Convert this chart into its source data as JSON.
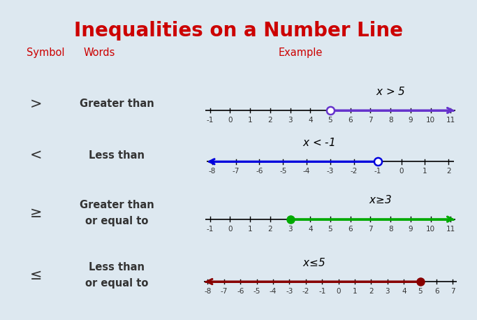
{
  "title": "Inequalities on a Number Line",
  "title_color": "#cc0000",
  "title_fontsize": 20,
  "bg_color": "#ffffff",
  "outer_bg": "#dde8f0",
  "header_color": "#cc0000",
  "rows": [
    {
      "symbol": ">",
      "words": "Greater than",
      "words2": null,
      "equation": "x > 5",
      "ticks": [
        -1,
        0,
        1,
        2,
        3,
        4,
        5,
        6,
        7,
        8,
        9,
        10,
        11
      ],
      "point": 5,
      "filled": false,
      "direction": "right",
      "color": "#6633cc"
    },
    {
      "symbol": "<",
      "words": "Less than",
      "words2": null,
      "equation": "x < -1",
      "ticks": [
        -8,
        -7,
        -6,
        -5,
        -4,
        -3,
        -2,
        -1,
        0,
        1,
        2
      ],
      "point": -1,
      "filled": false,
      "direction": "left",
      "color": "#0000dd"
    },
    {
      "symbol": "≥",
      "words": "Greater than",
      "words2": "or equal to",
      "equation": "x≥3",
      "ticks": [
        -1,
        0,
        1,
        2,
        3,
        4,
        5,
        6,
        7,
        8,
        9,
        10,
        11
      ],
      "point": 3,
      "filled": true,
      "direction": "right",
      "color": "#00aa00"
    },
    {
      "symbol": "≤",
      "words": "Less than",
      "words2": "or equal to",
      "equation": "x≤5",
      "ticks": [
        -8,
        -7,
        -6,
        -5,
        -4,
        -3,
        -2,
        -1,
        0,
        1,
        2,
        3,
        4,
        5,
        6,
        7
      ],
      "point": 5,
      "filled": true,
      "direction": "left",
      "color": "#880000"
    }
  ]
}
